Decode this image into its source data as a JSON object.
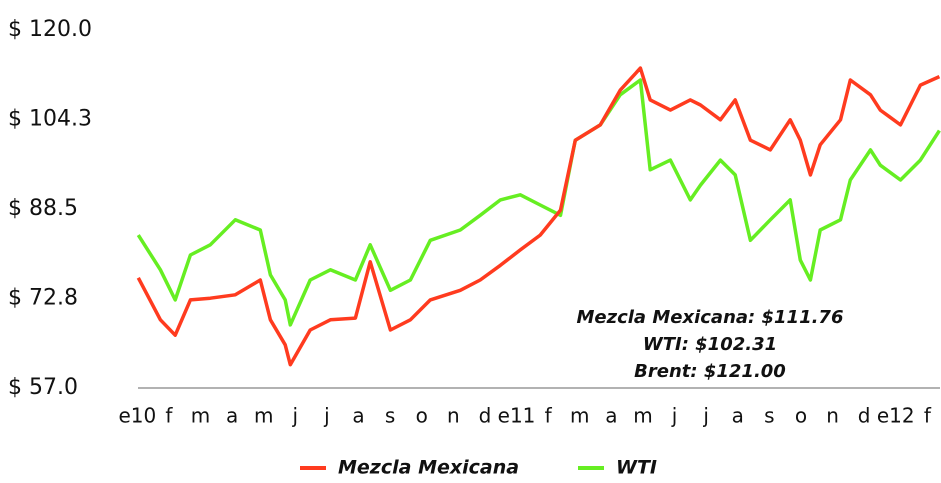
{
  "chart_data": {
    "type": "line",
    "x": [
      0.03,
      0.73,
      1.2,
      1.68,
      2.31,
      3.1,
      3.89,
      4.21,
      4.68,
      4.84,
      5.47,
      6.11,
      6.9,
      7.37,
      8.01,
      8.64,
      9.27,
      10.22,
      10.85,
      11.49,
      12.12,
      12.75,
      13.39,
      13.86,
      14.65,
      15.28,
      15.92,
      16.23,
      16.87,
      17.5,
      17.82,
      18.45,
      18.92,
      19.4,
      20.03,
      20.66,
      20.98,
      21.3,
      21.61,
      22.25,
      22.56,
      23.2,
      23.51,
      24.15,
      24.78,
      25.38
    ],
    "series": [
      {
        "name": "Mezcla Mexicana",
        "color": "#ff3b1f",
        "values": [
          76.4,
          69.0,
          66.3,
          72.5,
          72.8,
          73.4,
          76.0,
          69.0,
          64.6,
          61.1,
          67.2,
          69.0,
          69.3,
          79.2,
          67.2,
          69.0,
          72.5,
          74.2,
          76.0,
          78.6,
          81.3,
          83.9,
          88.3,
          100.6,
          103.3,
          109.4,
          113.3,
          107.7,
          105.9,
          107.7,
          106.8,
          104.2,
          107.7,
          100.6,
          98.9,
          104.2,
          100.6,
          94.5,
          99.8,
          104.2,
          111.2,
          108.6,
          105.9,
          103.3,
          110.3,
          111.8
        ]
      },
      {
        "name": "WTI",
        "color": "#66ee22",
        "values": [
          83.9,
          77.8,
          72.5,
          80.4,
          82.2,
          86.6,
          84.8,
          76.9,
          72.5,
          68.1,
          76.0,
          77.8,
          76.0,
          82.2,
          74.2,
          76.0,
          83.0,
          84.8,
          87.4,
          90.1,
          91.0,
          89.2,
          87.4,
          100.6,
          103.3,
          108.6,
          111.2,
          95.4,
          97.1,
          90.1,
          92.7,
          97.1,
          94.5,
          83.0,
          86.6,
          90.1,
          79.5,
          76.0,
          84.8,
          86.6,
          93.6,
          98.9,
          96.2,
          93.6,
          97.1,
          102.3
        ]
      }
    ],
    "xlim": [
      -0.2,
      25.4
    ],
    "xticks": [
      {
        "value": 0,
        "label": "e10"
      },
      {
        "value": 1,
        "label": "f"
      },
      {
        "value": 2,
        "label": "m"
      },
      {
        "value": 3,
        "label": "a"
      },
      {
        "value": 4,
        "label": "m"
      },
      {
        "value": 5,
        "label": "j"
      },
      {
        "value": 6,
        "label": "j"
      },
      {
        "value": 7,
        "label": "a"
      },
      {
        "value": 8,
        "label": "s"
      },
      {
        "value": 9,
        "label": "o"
      },
      {
        "value": 10,
        "label": "n"
      },
      {
        "value": 11,
        "label": "d"
      },
      {
        "value": 12,
        "label": "e11"
      },
      {
        "value": 13,
        "label": "f"
      },
      {
        "value": 14,
        "label": "m"
      },
      {
        "value": 15,
        "label": "a"
      },
      {
        "value": 16,
        "label": "m"
      },
      {
        "value": 17,
        "label": "j"
      },
      {
        "value": 18,
        "label": "j"
      },
      {
        "value": 19,
        "label": "a"
      },
      {
        "value": 20,
        "label": "s"
      },
      {
        "value": 21,
        "label": "o"
      },
      {
        "value": 22,
        "label": "n"
      },
      {
        "value": 23,
        "label": "d"
      },
      {
        "value": 24,
        "label": "e12"
      },
      {
        "value": 25,
        "label": "f"
      }
    ],
    "ylim": [
      57,
      120
    ],
    "yticks": [
      {
        "value": 57,
        "label": "$ 57.0"
      },
      {
        "value": 72.75,
        "label": "$ 72.8"
      },
      {
        "value": 88.5,
        "label": "$ 88.5"
      },
      {
        "value": 104.25,
        "label": "$ 104.3"
      },
      {
        "value": 120,
        "label": "$ 120.0"
      }
    ],
    "grid": false,
    "legend": "bottom",
    "annotations": [
      "Mezcla Mexicana: $111.76",
      "WTI: $102.31",
      "Brent: $121.00"
    ]
  }
}
